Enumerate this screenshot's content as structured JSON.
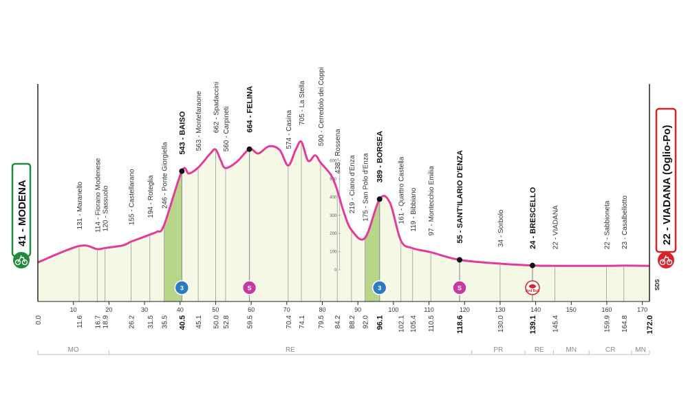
{
  "stage": {
    "start": "41 - MODENA",
    "finish": "22 - VIADANA (Oglio-Po)",
    "start_color": "#1f8a3a",
    "finish_color": "#d8232a",
    "profile_color": "#e43a9a",
    "fill_color": "#f6f8e6",
    "climb_color": "#b8d68a"
  },
  "profile": [
    {
      "km": 0.0,
      "alt": 41
    },
    {
      "km": 11.6,
      "alt": 131
    },
    {
      "km": 16.7,
      "alt": 114
    },
    {
      "km": 18.9,
      "alt": 120
    },
    {
      "km": 24.0,
      "alt": 135
    },
    {
      "km": 26.2,
      "alt": 155
    },
    {
      "km": 29.0,
      "alt": 175
    },
    {
      "km": 31.5,
      "alt": 194
    },
    {
      "km": 33.5,
      "alt": 210
    },
    {
      "km": 35.5,
      "alt": 246
    },
    {
      "km": 40.5,
      "alt": 543
    },
    {
      "km": 42.5,
      "alt": 530
    },
    {
      "km": 45.1,
      "alt": 563
    },
    {
      "km": 48.5,
      "alt": 640
    },
    {
      "km": 50.0,
      "alt": 662
    },
    {
      "km": 51.5,
      "alt": 600
    },
    {
      "km": 52.8,
      "alt": 560
    },
    {
      "km": 56.0,
      "alt": 595
    },
    {
      "km": 59.5,
      "alt": 664
    },
    {
      "km": 62.0,
      "alt": 640
    },
    {
      "km": 65.0,
      "alt": 680
    },
    {
      "km": 68.0,
      "alt": 660
    },
    {
      "km": 70.4,
      "alt": 574
    },
    {
      "km": 72.5,
      "alt": 660
    },
    {
      "km": 74.1,
      "alt": 705
    },
    {
      "km": 76.0,
      "alt": 600
    },
    {
      "km": 78.0,
      "alt": 630
    },
    {
      "km": 79.5,
      "alt": 590
    },
    {
      "km": 82.5,
      "alt": 520
    },
    {
      "km": 84.2,
      "alt": 438
    },
    {
      "km": 86.0,
      "alt": 320
    },
    {
      "km": 88.2,
      "alt": 219
    },
    {
      "km": 92.0,
      "alt": 175
    },
    {
      "km": 96.1,
      "alt": 389
    },
    {
      "km": 99.0,
      "alt": 370
    },
    {
      "km": 102.1,
      "alt": 161
    },
    {
      "km": 105.4,
      "alt": 119
    },
    {
      "km": 110.5,
      "alt": 97
    },
    {
      "km": 118.6,
      "alt": 55
    },
    {
      "km": 130.0,
      "alt": 34
    },
    {
      "km": 139.1,
      "alt": 24
    },
    {
      "km": 145.4,
      "alt": 22
    },
    {
      "km": 159.9,
      "alt": 22
    },
    {
      "km": 164.8,
      "alt": 23
    },
    {
      "km": 172.0,
      "alt": 22
    }
  ],
  "places": [
    {
      "km": 11.6,
      "label": "131 - Maranello",
      "bold": false
    },
    {
      "km": 16.7,
      "label": "114 - Fiorano Modenese",
      "bold": false
    },
    {
      "km": 18.9,
      "label": "120 - Sassuolo",
      "bold": false
    },
    {
      "km": 26.2,
      "label": "155 - Castellarano",
      "bold": false
    },
    {
      "km": 31.5,
      "label": "194 - Roteglia",
      "bold": false
    },
    {
      "km": 35.5,
      "label": "246 - Ponte Giorgiella",
      "bold": false
    },
    {
      "km": 40.5,
      "label": "543 - BAISO",
      "bold": true
    },
    {
      "km": 45.1,
      "label": "563 - Montefaraone",
      "bold": false
    },
    {
      "km": 50.0,
      "label": "662 - Spadaccini",
      "bold": false
    },
    {
      "km": 52.8,
      "label": "560 - Carpineti",
      "bold": false
    },
    {
      "km": 59.5,
      "label": "664 - FELINA",
      "bold": true
    },
    {
      "km": 70.4,
      "label": "574 - Casina",
      "bold": false
    },
    {
      "km": 74.1,
      "label": "705 - La Stella",
      "bold": false
    },
    {
      "km": 79.5,
      "label": "590 - Cerredolo dei Coppi",
      "bold": false
    },
    {
      "km": 84.2,
      "label": "438 - Rossena",
      "bold": false
    },
    {
      "km": 88.2,
      "label": "219 - Ciano d'Enza",
      "bold": false
    },
    {
      "km": 92.0,
      "label": "175 - San Polo d'Enza",
      "bold": false
    },
    {
      "km": 96.1,
      "label": "389 - BORSEA",
      "bold": true
    },
    {
      "km": 102.1,
      "label": "161 - Quattro Castella",
      "bold": false
    },
    {
      "km": 105.4,
      "label": "119 - Bibbiano",
      "bold": false
    },
    {
      "km": 110.5,
      "label": "97 - Montecchio Emilia",
      "bold": false
    },
    {
      "km": 118.6,
      "label": "55 - SANT'ILARIO D'ENZA",
      "bold": true
    },
    {
      "km": 130.0,
      "label": "34 - Sorbolo",
      "bold": false
    },
    {
      "km": 139.1,
      "label": "24 - BRESCELLO",
      "bold": true
    },
    {
      "km": 145.4,
      "label": "22 - VIADANA",
      "bold": false
    },
    {
      "km": 159.9,
      "label": "22 - Sabbioneta",
      "bold": false
    },
    {
      "km": 164.8,
      "label": "23 - Casalbellotto",
      "bold": false
    }
  ],
  "km_labels": [
    {
      "km": 0.0,
      "text": "0.0",
      "bold": false
    },
    {
      "km": 11.6,
      "text": "11.6",
      "bold": false
    },
    {
      "km": 16.7,
      "text": "16.7",
      "bold": false
    },
    {
      "km": 18.9,
      "text": "18.9",
      "bold": false
    },
    {
      "km": 26.2,
      "text": "26.2",
      "bold": false
    },
    {
      "km": 31.5,
      "text": "31.5",
      "bold": false
    },
    {
      "km": 35.5,
      "text": "35.5",
      "bold": false
    },
    {
      "km": 40.5,
      "text": "40.5",
      "bold": true
    },
    {
      "km": 45.1,
      "text": "45.1",
      "bold": false
    },
    {
      "km": 50.0,
      "text": "50.0",
      "bold": false
    },
    {
      "km": 52.8,
      "text": "52.8",
      "bold": false
    },
    {
      "km": 59.5,
      "text": "59.5",
      "bold": false
    },
    {
      "km": 70.4,
      "text": "70.4",
      "bold": false
    },
    {
      "km": 74.1,
      "text": "74.1",
      "bold": false
    },
    {
      "km": 79.5,
      "text": "79.5",
      "bold": false
    },
    {
      "km": 84.2,
      "text": "84.2",
      "bold": false
    },
    {
      "km": 88.2,
      "text": "88.2",
      "bold": false
    },
    {
      "km": 92.0,
      "text": "92.0",
      "bold": false
    },
    {
      "km": 96.1,
      "text": "96.1",
      "bold": true
    },
    {
      "km": 102.1,
      "text": "102.1",
      "bold": false
    },
    {
      "km": 105.4,
      "text": "105.4",
      "bold": false
    },
    {
      "km": 110.5,
      "text": "110.5",
      "bold": false
    },
    {
      "km": 118.6,
      "text": "118.6",
      "bold": true
    },
    {
      "km": 130.0,
      "text": "130.0",
      "bold": false
    },
    {
      "km": 139.1,
      "text": "139.1",
      "bold": true
    },
    {
      "km": 145.4,
      "text": "145.4",
      "bold": false
    },
    {
      "km": 159.9,
      "text": "159.9",
      "bold": false
    },
    {
      "km": 164.8,
      "text": "164.8",
      "bold": false
    },
    {
      "km": 172.0,
      "text": "172.0",
      "bold": true
    }
  ],
  "distance_ticks": [
    "10",
    "20",
    "30",
    "40",
    "50",
    "60",
    "70",
    "80",
    "90",
    "100",
    "110",
    "120",
    "130",
    "140",
    "150",
    "160",
    "170"
  ],
  "altitude_ticks": [
    "0",
    "100",
    "200",
    "300",
    "400",
    "500",
    "600"
  ],
  "climbs": [
    {
      "km_start": 35.5,
      "km_end": 40.5,
      "category": "3"
    },
    {
      "km_start": 92.0,
      "km_end": 96.1,
      "category": "3"
    }
  ],
  "markers": [
    {
      "km": 40.5,
      "type": "climb",
      "text": "3",
      "color": "#2b7bc0"
    },
    {
      "km": 59.5,
      "type": "sprint",
      "text": "S",
      "color": "#c93aa0"
    },
    {
      "km": 96.1,
      "type": "climb",
      "text": "3",
      "color": "#2b7bc0"
    },
    {
      "km": 118.6,
      "type": "sprint",
      "text": "S",
      "color": "#c93aa0"
    },
    {
      "km": 139.1,
      "type": "bonus",
      "text": "Red Bull",
      "color": "#d8232a"
    }
  ],
  "dots": [
    40.5,
    59.5,
    96.1,
    118.6,
    139.1
  ],
  "regions": [
    {
      "code": "MO",
      "from": 0,
      "to": 20
    },
    {
      "code": "RE",
      "from": 20,
      "to": 122
    },
    {
      "code": "PR",
      "from": 122,
      "to": 137
    },
    {
      "code": "RE",
      "from": 137,
      "to": 145
    },
    {
      "code": "MN",
      "from": 145,
      "to": 155
    },
    {
      "code": "CR",
      "from": 155,
      "to": 167
    },
    {
      "code": "MN",
      "from": 167,
      "to": 172
    }
  ],
  "logo_text": "SDS"
}
